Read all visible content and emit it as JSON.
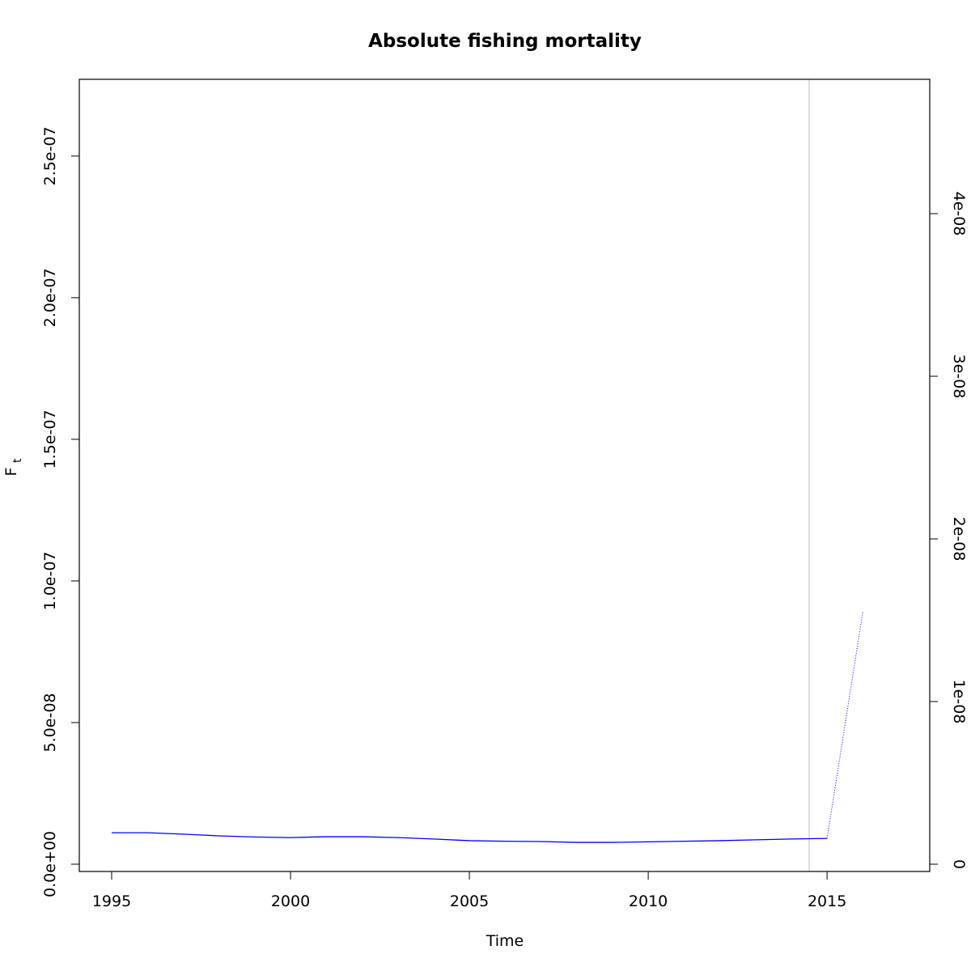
{
  "chart_data": {
    "type": "line",
    "title": "Absolute fishing mortality",
    "xlabel": "Time",
    "ylabel": "F",
    "ylabel_subscript": "t",
    "x": [
      1995,
      1996,
      1997,
      1998,
      1999,
      2000,
      2001,
      2002,
      2003,
      2004,
      2005,
      2006,
      2007,
      2008,
      2009,
      2010,
      2011,
      2012,
      2013,
      2014,
      2015,
      2016
    ],
    "series": [
      {
        "color": "#0000ff",
        "style": "solid",
        "values": [
          1.11e-08,
          1.11e-08,
          1.06e-08,
          1e-08,
          9.6e-09,
          9.4e-09,
          9.7e-09,
          9.7e-09,
          9.4e-09,
          8.9e-09,
          8.3e-09,
          8.1e-09,
          8e-09,
          7.7e-09,
          7.7e-09,
          7.9e-09,
          8.1e-09,
          8.3e-09,
          8.6e-09,
          8.9e-09,
          9.1e-09,
          null
        ]
      },
      {
        "color": "#0000ff",
        "style": "dotted",
        "values": [
          null,
          null,
          null,
          null,
          null,
          null,
          null,
          null,
          null,
          null,
          null,
          null,
          null,
          null,
          null,
          null,
          null,
          null,
          null,
          null,
          9.1e-09,
          8.91e-08
        ]
      }
    ],
    "vline": {
      "x": 2014.5,
      "color": "#d3d3d3"
    },
    "xlim": [
      1994.095,
      2017.87
    ],
    "xticks": [
      1995,
      2000,
      2005,
      2010,
      2015
    ],
    "ylim": [
      -2.57e-09,
      2.771e-07
    ],
    "yticks": [
      {
        "value": 0,
        "label": "0.0e+00"
      },
      {
        "value": 5e-08,
        "label": "5.0e-08"
      },
      {
        "value": 1e-07,
        "label": "1.0e-07"
      },
      {
        "value": 1.5e-07,
        "label": "1.5e-07"
      },
      {
        "value": 2e-07,
        "label": "2.0e-07"
      },
      {
        "value": 2.5e-07,
        "label": "2.5e-07"
      }
    ],
    "y2lim": [
      -4.48e-10,
      4.826e-08
    ],
    "y2ticks": [
      0,
      {
        "value": 1e-08,
        "label": "1e-08"
      },
      {
        "value": 2e-08,
        "label": "2e-08"
      },
      {
        "value": 3e-08,
        "label": "3e-08"
      },
      {
        "value": 4e-08,
        "label": "4e-08"
      }
    ]
  }
}
